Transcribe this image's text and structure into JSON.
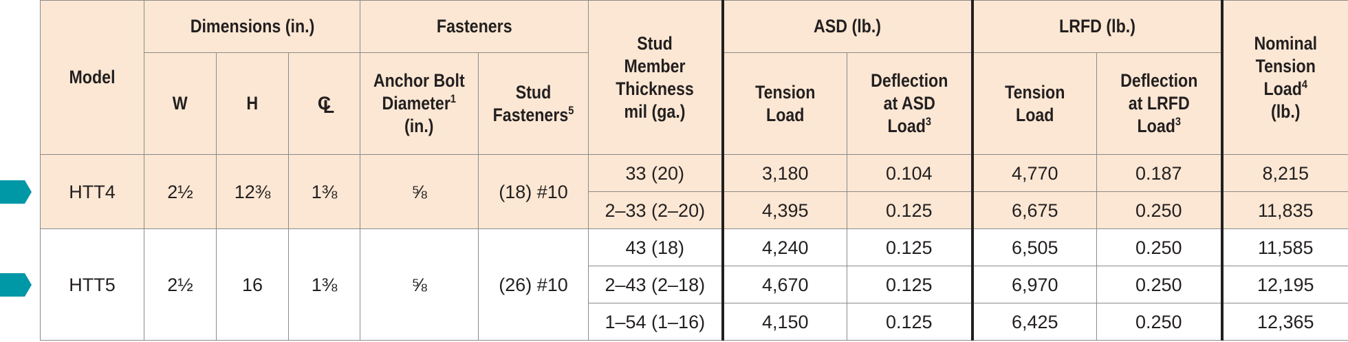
{
  "colors": {
    "header_bg": "#fbe7d3",
    "marker": "#0097a7",
    "border": "#8a8a8a"
  },
  "header": {
    "model": "Model",
    "dimensions": "Dimensions (in.)",
    "fasteners": "Fasteners",
    "stud_member": [
      "Stud",
      "Member",
      "Thickness",
      "mil (ga.)"
    ],
    "asd": "ASD (lb.)",
    "lrfd": "LRFD (lb.)",
    "nominal": [
      "Nominal",
      "Tension",
      "Load",
      "(lb.)"
    ],
    "nominal_sup": "4",
    "w": "W",
    "h": "H",
    "cl_c": "C",
    "cl_l": "L",
    "anchor_bolt": [
      "Anchor Bolt",
      "Diameter",
      "(in.)"
    ],
    "anchor_bolt_sup": "1",
    "stud_fasteners": [
      "Stud",
      "Fasteners"
    ],
    "stud_fasteners_sup": "5",
    "asd_tension": [
      "Tension",
      "Load"
    ],
    "asd_deflection": [
      "Deflection",
      "at ASD",
      "Load"
    ],
    "asd_deflection_sup": "3",
    "lrfd_tension": [
      "Tension",
      "Load"
    ],
    "lrfd_deflection": [
      "Deflection",
      "at LRFD",
      "Load"
    ],
    "lrfd_deflection_sup": "3"
  },
  "rows": [
    {
      "model": "HTT4",
      "w": "2½",
      "h": "12⅜",
      "cl": "1⅜",
      "anchor": "⅝",
      "fasteners": "(18) #10",
      "sub": [
        {
          "stud": "33 (20)",
          "asd_tension": "3,180",
          "asd_defl": "0.104",
          "lrfd_tension": "4,770",
          "lrfd_defl": "0.187",
          "nominal": "8,215"
        },
        {
          "stud": "2–33 (2–20)",
          "asd_tension": "4,395",
          "asd_defl": "0.125",
          "lrfd_tension": "6,675",
          "lrfd_defl": "0.250",
          "nominal": "11,835"
        }
      ]
    },
    {
      "model": "HTT5",
      "w": "2½",
      "h": "16",
      "cl": "1⅜",
      "anchor": "⅝",
      "fasteners": "(26) #10",
      "sub": [
        {
          "stud": "43 (18)",
          "asd_tension": "4,240",
          "asd_defl": "0.125",
          "lrfd_tension": "6,505",
          "lrfd_defl": "0.250",
          "nominal": "11,585"
        },
        {
          "stud": "2–43 (2–18)",
          "asd_tension": "4,670",
          "asd_defl": "0.125",
          "lrfd_tension": "6,970",
          "lrfd_defl": "0.250",
          "nominal": "12,195"
        },
        {
          "stud": "1–54 (1–16)",
          "asd_tension": "4,150",
          "asd_defl": "0.125",
          "lrfd_tension": "6,425",
          "lrfd_defl": "0.250",
          "nominal": "12,365"
        }
      ]
    }
  ]
}
